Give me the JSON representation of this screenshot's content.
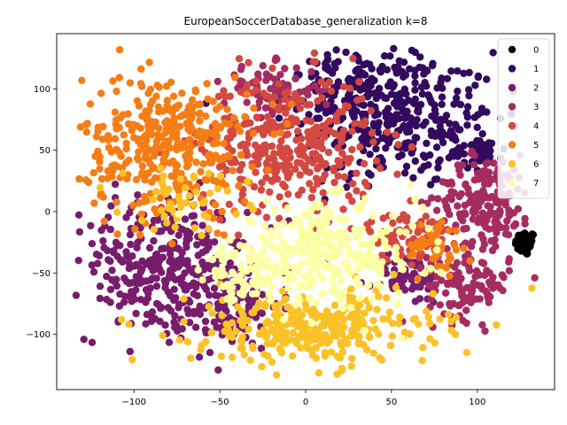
{
  "chart_data": {
    "type": "scatter",
    "title": "EuropeanSoccerDatabase_generalization k=8",
    "xlabel": "",
    "ylabel": "",
    "xlim": [
      -145,
      145
    ],
    "ylim": [
      -145,
      145
    ],
    "x_ticks": [
      -100,
      -50,
      0,
      50,
      100
    ],
    "y_ticks": [
      -100,
      -50,
      0,
      50,
      100
    ],
    "x_tick_labels": [
      "−100",
      "−50",
      "0",
      "50",
      "100"
    ],
    "y_tick_labels": [
      "−100",
      "−50",
      "0",
      "50",
      "100"
    ],
    "grid": false,
    "legend_position": "top-right",
    "series": [
      {
        "name": "0",
        "color": "#000004",
        "clusters": [
          {
            "cx": 128,
            "cy": -26,
            "sx": 3,
            "sy": 5,
            "n": 60
          }
        ]
      },
      {
        "name": "1",
        "color": "#320a5e",
        "clusters": [
          {
            "cx": 55,
            "cy": 75,
            "sx": 28,
            "sy": 28,
            "n": 320
          },
          {
            "cx": 25,
            "cy": 100,
            "sx": 18,
            "sy": 15,
            "n": 120
          },
          {
            "cx": 100,
            "cy": 50,
            "sx": 8,
            "sy": 6,
            "n": 40
          }
        ]
      },
      {
        "name": "2",
        "color": "#781c6d",
        "clusters": [
          {
            "cx": -85,
            "cy": -45,
            "sx": 25,
            "sy": 28,
            "n": 320
          },
          {
            "cx": -45,
            "cy": -75,
            "sx": 15,
            "sy": 18,
            "n": 120
          },
          {
            "cx": 60,
            "cy": -55,
            "sx": 10,
            "sy": 10,
            "n": 60
          }
        ]
      },
      {
        "name": "3",
        "color": "#a52c60",
        "clusters": [
          {
            "cx": 105,
            "cy": 10,
            "sx": 14,
            "sy": 18,
            "n": 180
          },
          {
            "cx": 95,
            "cy": -60,
            "sx": 12,
            "sy": 14,
            "n": 110
          },
          {
            "cx": -20,
            "cy": 100,
            "sx": 14,
            "sy": 10,
            "n": 80
          }
        ]
      },
      {
        "name": "4",
        "color": "#d44842",
        "clusters": [
          {
            "cx": -10,
            "cy": 55,
            "sx": 25,
            "sy": 28,
            "n": 360
          },
          {
            "cx": 60,
            "cy": -20,
            "sx": 12,
            "sy": 10,
            "n": 80
          }
        ]
      },
      {
        "name": "5",
        "color": "#f57d15",
        "clusters": [
          {
            "cx": -80,
            "cy": 55,
            "sx": 25,
            "sy": 28,
            "n": 360
          },
          {
            "cx": 75,
            "cy": -30,
            "sx": 8,
            "sy": 12,
            "n": 50
          }
        ]
      },
      {
        "name": "6",
        "color": "#fac228",
        "clusters": [
          {
            "cx": 5,
            "cy": -95,
            "sx": 35,
            "sy": 15,
            "n": 320
          },
          {
            "cx": -70,
            "cy": 10,
            "sx": 18,
            "sy": 12,
            "n": 50
          }
        ]
      },
      {
        "name": "7",
        "color": "#fcffa4",
        "clusters": [
          {
            "cx": 10,
            "cy": -35,
            "sx": 28,
            "sy": 20,
            "n": 300
          },
          {
            "cx": -40,
            "cy": -55,
            "sx": 10,
            "sy": 10,
            "n": 50
          }
        ]
      }
    ]
  }
}
